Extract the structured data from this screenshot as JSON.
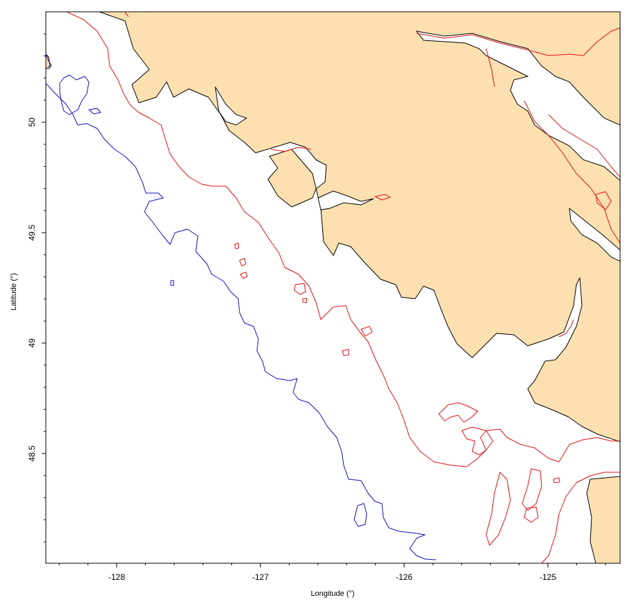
{
  "map": {
    "xlabel": "Longitude (°)",
    "ylabel": "Latitude (°)",
    "x_ticks": [
      "-128",
      "-127",
      "-126",
      "-125"
    ],
    "y_ticks": [
      "50",
      "49.5",
      "49",
      "48.5"
    ],
    "colors": {
      "land": "#fde0b0",
      "coastline": "#000000",
      "red_contour": "#e01010",
      "blue_contour": "#1010c0",
      "water": "#ffffff"
    }
  }
}
